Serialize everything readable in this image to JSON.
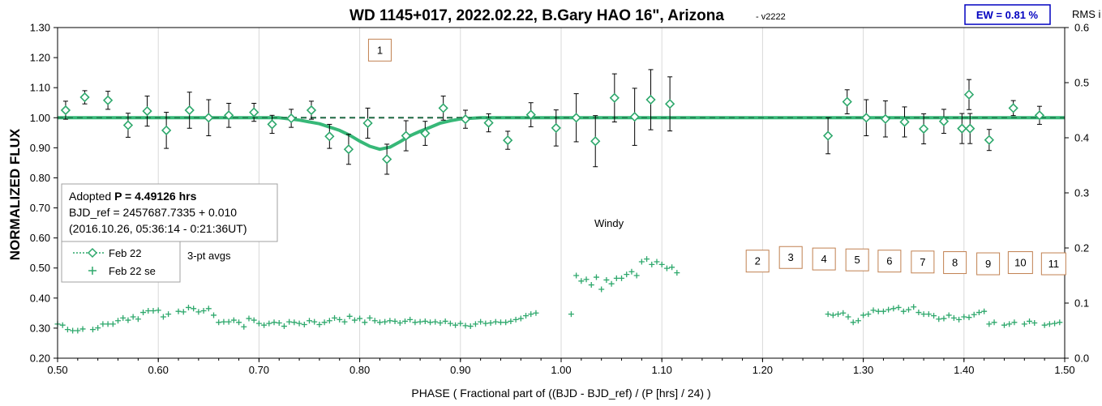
{
  "chart_data": {
    "type": "scatter",
    "title": "WD 1145+017, 2022.02.22, B.Gary HAO 16\", Arizona",
    "version": "- v2222",
    "ew_label": "EW = 0.81 %",
    "xlabel": "PHASE ( Fractional part of ((BJD - BJD_ref) / (P [hrs] / 24) )",
    "ylabel": "NORMALIZED FLUX",
    "y2label": "RMS i",
    "xlim": [
      0.5,
      1.5
    ],
    "ylim": [
      0.2,
      1.3
    ],
    "y2lim": [
      0.0,
      0.6
    ],
    "xticks": [
      "0.50",
      "0.60",
      "0.70",
      "0.80",
      "0.90",
      "1.00",
      "1.10",
      "1.20",
      "1.30",
      "1.40",
      "1.50"
    ],
    "yticks": [
      "0.20",
      "0.30",
      "0.40",
      "0.50",
      "0.60",
      "0.70",
      "0.80",
      "0.90",
      "1.00",
      "1.10",
      "1.20",
      "1.30"
    ],
    "y2ticks": [
      "0.0",
      "0.1",
      "0.2",
      "0.3",
      "0.4",
      "0.5",
      "0.6"
    ],
    "grid": "vertical-only",
    "info_box": {
      "line1_prefix": "Adopted ",
      "line1_bold": "P = 4.49126 hrs",
      "line2": "BJD_ref = 2457687.7335 + 0.010",
      "line3": "(2016.10.26, 05:36:14 - 0:21:36UT)"
    },
    "legend": {
      "placement": "lower-left",
      "entries": [
        "Feb 22",
        "Feb 22 se"
      ]
    },
    "annotations": {
      "avgs": "3-pt avgs",
      "windy": "Windy",
      "boxes": [
        {
          "label": "1",
          "x": 0.82,
          "y": 1.225
        },
        {
          "label": "2",
          "x": 1.195,
          "y": 0.523
        },
        {
          "label": "3",
          "x": 1.228,
          "y": 0.535
        },
        {
          "label": "4",
          "x": 1.261,
          "y": 0.53
        },
        {
          "label": "5",
          "x": 1.294,
          "y": 0.527
        },
        {
          "label": "6",
          "x": 1.326,
          "y": 0.523
        },
        {
          "label": "7",
          "x": 1.359,
          "y": 0.52
        },
        {
          "label": "8",
          "x": 1.391,
          "y": 0.518
        },
        {
          "label": "9",
          "x": 1.424,
          "y": 0.514
        },
        {
          "label": "10",
          "x": 1.456,
          "y": 0.518
        },
        {
          "label": "11",
          "x": 1.489,
          "y": 0.514
        }
      ]
    },
    "colors": {
      "series": "#2ea86c",
      "model": "#37b878",
      "ref_line": "#8a8a8a",
      "box_border": "#c08050",
      "ew_border": "#0000c0"
    },
    "series": [
      {
        "name": "Feb 22",
        "marker": "diamond",
        "points": [
          [
            0.508,
            1.025,
            0.03
          ],
          [
            0.527,
            1.068,
            0.022
          ],
          [
            0.55,
            1.058,
            0.03
          ],
          [
            0.57,
            0.975,
            0.04
          ],
          [
            0.589,
            1.022,
            0.05
          ],
          [
            0.608,
            0.958,
            0.06
          ],
          [
            0.631,
            1.025,
            0.06
          ],
          [
            0.65,
            1.0,
            0.06
          ],
          [
            0.67,
            1.008,
            0.04
          ],
          [
            0.695,
            1.018,
            0.03
          ],
          [
            0.713,
            0.978,
            0.03
          ],
          [
            0.732,
            0.998,
            0.03
          ],
          [
            0.752,
            1.025,
            0.03
          ],
          [
            0.77,
            0.938,
            0.04
          ],
          [
            0.789,
            0.895,
            0.05
          ],
          [
            0.808,
            0.982,
            0.05
          ],
          [
            0.827,
            0.862,
            0.05
          ],
          [
            0.846,
            0.94,
            0.05
          ],
          [
            0.865,
            0.948,
            0.04
          ],
          [
            0.883,
            1.032,
            0.04
          ],
          [
            0.905,
            0.995,
            0.03
          ],
          [
            0.928,
            0.983,
            0.03
          ],
          [
            0.947,
            0.925,
            0.03
          ],
          [
            0.97,
            1.01,
            0.04
          ],
          [
            0.995,
            0.966,
            0.06
          ],
          [
            1.015,
            1.0,
            0.08
          ],
          [
            1.034,
            0.922,
            0.085
          ],
          [
            1.053,
            1.066,
            0.08
          ],
          [
            1.073,
            1.003,
            0.095
          ],
          [
            1.089,
            1.06,
            0.1
          ],
          [
            1.108,
            1.046,
            0.09
          ],
          [
            1.265,
            0.94,
            0.06
          ],
          [
            1.284,
            1.053,
            0.04
          ],
          [
            1.303,
            1.0,
            0.06
          ],
          [
            1.322,
            0.996,
            0.06
          ],
          [
            1.341,
            0.986,
            0.05
          ],
          [
            1.36,
            0.963,
            0.05
          ],
          [
            1.38,
            0.988,
            0.04
          ],
          [
            1.398,
            0.964,
            0.05
          ],
          [
            1.406,
            0.964,
            0.05
          ],
          [
            1.405,
            1.077,
            0.05
          ],
          [
            1.425,
            0.926,
            0.035
          ],
          [
            1.449,
            1.032,
            0.025
          ],
          [
            1.475,
            1.008,
            0.03
          ]
        ]
      },
      {
        "name": "Feb 22 se",
        "axis": "y2",
        "marker": "plus",
        "x": [
          0.5,
          0.505,
          0.51,
          0.515,
          0.52,
          0.525,
          0.535,
          0.54,
          0.545,
          0.55,
          0.555,
          0.56,
          0.565,
          0.57,
          0.575,
          0.58,
          0.585,
          0.59,
          0.595,
          0.6,
          0.605,
          0.61,
          0.62,
          0.625,
          0.63,
          0.635,
          0.64,
          0.645,
          0.65,
          0.655,
          0.66,
          0.665,
          0.67,
          0.675,
          0.68,
          0.685,
          0.69,
          0.695,
          0.7,
          0.705,
          0.71,
          0.715,
          0.72,
          0.725,
          0.73,
          0.735,
          0.74,
          0.745,
          0.75,
          0.755,
          0.76,
          0.765,
          0.77,
          0.775,
          0.78,
          0.785,
          0.79,
          0.795,
          0.8,
          0.805,
          0.81,
          0.815,
          0.82,
          0.825,
          0.83,
          0.835,
          0.84,
          0.845,
          0.85,
          0.855,
          0.86,
          0.865,
          0.87,
          0.875,
          0.88,
          0.885,
          0.89,
          0.895,
          0.9,
          0.905,
          0.91,
          0.915,
          0.92,
          0.925,
          0.93,
          0.935,
          0.94,
          0.945,
          0.95,
          0.955,
          0.96,
          0.965,
          0.97,
          0.975,
          1.01,
          1.015,
          1.02,
          1.025,
          1.03,
          1.035,
          1.04,
          1.045,
          1.05,
          1.055,
          1.06,
          1.065,
          1.07,
          1.075,
          1.08,
          1.085,
          1.09,
          1.095,
          1.1,
          1.105,
          1.11,
          1.115,
          1.265,
          1.27,
          1.275,
          1.28,
          1.285,
          1.29,
          1.295,
          1.3,
          1.305,
          1.31,
          1.315,
          1.32,
          1.325,
          1.33,
          1.335,
          1.34,
          1.345,
          1.35,
          1.355,
          1.36,
          1.365,
          1.37,
          1.375,
          1.38,
          1.385,
          1.39,
          1.395,
          1.4,
          1.405,
          1.41,
          1.415,
          1.42,
          1.425,
          1.43,
          1.44,
          1.445,
          1.45,
          1.46,
          1.465,
          1.47,
          1.48,
          1.485,
          1.49,
          1.495
        ],
        "y": [
          0.062,
          0.06,
          0.052,
          0.05,
          0.05,
          0.053,
          0.052,
          0.055,
          0.062,
          0.062,
          0.062,
          0.068,
          0.073,
          0.069,
          0.075,
          0.071,
          0.083,
          0.086,
          0.086,
          0.087,
          0.075,
          0.08,
          0.085,
          0.084,
          0.092,
          0.09,
          0.084,
          0.086,
          0.09,
          0.078,
          0.065,
          0.066,
          0.066,
          0.069,
          0.065,
          0.057,
          0.072,
          0.069,
          0.063,
          0.06,
          0.063,
          0.065,
          0.064,
          0.058,
          0.066,
          0.065,
          0.063,
          0.061,
          0.068,
          0.066,
          0.061,
          0.065,
          0.068,
          0.073,
          0.07,
          0.066,
          0.076,
          0.069,
          0.072,
          0.065,
          0.073,
          0.068,
          0.065,
          0.066,
          0.068,
          0.067,
          0.064,
          0.067,
          0.07,
          0.065,
          0.066,
          0.067,
          0.065,
          0.066,
          0.064,
          0.067,
          0.063,
          0.06,
          0.063,
          0.059,
          0.058,
          0.062,
          0.066,
          0.063,
          0.064,
          0.066,
          0.065,
          0.065,
          0.067,
          0.07,
          0.072,
          0.077,
          0.08,
          0.082,
          0.08,
          0.15,
          0.14,
          0.143,
          0.133,
          0.147,
          0.125,
          0.142,
          0.135,
          0.145,
          0.145,
          0.152,
          0.157,
          0.15,
          0.175,
          0.18,
          0.17,
          0.175,
          0.17,
          0.163,
          0.165,
          0.155,
          0.08,
          0.078,
          0.08,
          0.082,
          0.075,
          0.065,
          0.068,
          0.078,
          0.08,
          0.087,
          0.085,
          0.085,
          0.088,
          0.09,
          0.092,
          0.085,
          0.088,
          0.093,
          0.083,
          0.08,
          0.08,
          0.077,
          0.071,
          0.072,
          0.078,
          0.073,
          0.07,
          0.075,
          0.074,
          0.079,
          0.083,
          0.085,
          0.062,
          0.065,
          0.06,
          0.062,
          0.065,
          0.062,
          0.067,
          0.064,
          0.06,
          0.062,
          0.063,
          0.065
        ]
      },
      {
        "name": "",
        "role": "model",
        "x": [
          0.5,
          0.72,
          0.74,
          0.76,
          0.78,
          0.79,
          0.8,
          0.81,
          0.82,
          0.83,
          0.84,
          0.85,
          0.86,
          0.87,
          0.88,
          0.89,
          0.9,
          0.92,
          1.5
        ],
        "y": [
          1.0,
          1.0,
          0.992,
          0.98,
          0.958,
          0.942,
          0.922,
          0.905,
          0.895,
          0.902,
          0.92,
          0.94,
          0.955,
          0.968,
          0.982,
          0.99,
          0.996,
          1.0,
          1.0
        ]
      }
    ]
  }
}
